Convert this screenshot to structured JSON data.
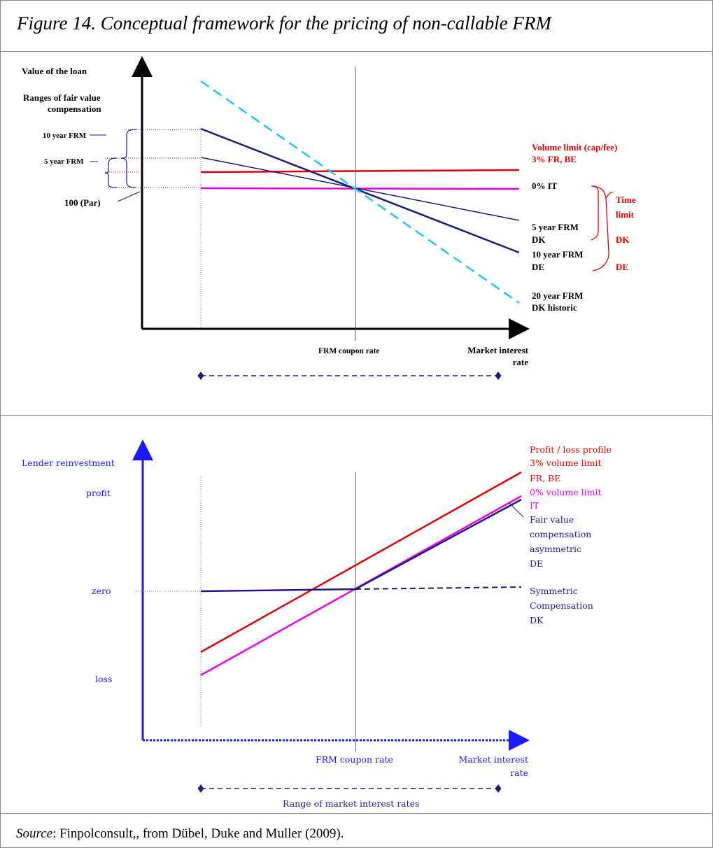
{
  "title": "Figure 14. Conceptual framework for the pricing of non-callable FRM",
  "source": {
    "prefix": "Source",
    "text": ": Finpolconsult,, from Dübel, Duke and Muller (2009)."
  },
  "top_diagram": {
    "y_axis_label": "Value of the loan",
    "ranges_label_1": "Ranges of fair value",
    "ranges_label_2": "compensation",
    "label_10y": "10 year FRM",
    "label_5y": "5 year FRM",
    "label_par": "100 (Par)",
    "coupon_label": "FRM coupon rate",
    "x_label_1": "Market interest",
    "x_label_2": "rate",
    "volume_limit_1": "Volume limit (cap/fee)",
    "volume_limit_2": "3% FR, BE",
    "it_label": "0% IT",
    "frm5_1": "5 year FRM",
    "frm5_2": "DK",
    "frm10_1": "10 year FRM",
    "frm10_2": "DE",
    "frm20_1": "20 year FRM",
    "frm20_2": "DK historic",
    "time_limit_1": "Time",
    "time_limit_2": "limit",
    "time_dk": "DK",
    "time_de": "DE"
  },
  "bottom_diagram": {
    "y_label_1": "Lender reinvestment",
    "y_label_2": "profit",
    "zero_label": "zero",
    "loss_label": "loss",
    "coupon_label": "FRM coupon rate",
    "x_label_1": "Market interest",
    "x_label_2": "rate",
    "range_label": "Range of market interest rates",
    "pl_1": "Profit / loss profile",
    "pl_2": "3% volume limit",
    "pl_3": "FR, BE",
    "pl_4": "0% volume limit",
    "pl_5": "IT",
    "fv_1": "Fair value",
    "fv_2": "compensation",
    "fv_3": "asymmetric",
    "fv_4": "DE",
    "sym_1": "Symmetric",
    "sym_2": "Compensation",
    "sym_3": "DK"
  },
  "colors": {
    "red": "#e00000",
    "magenta": "#e800e8",
    "navy": "#1a1a80",
    "cyan": "#20c8e8",
    "blue": "#1a1aff"
  }
}
